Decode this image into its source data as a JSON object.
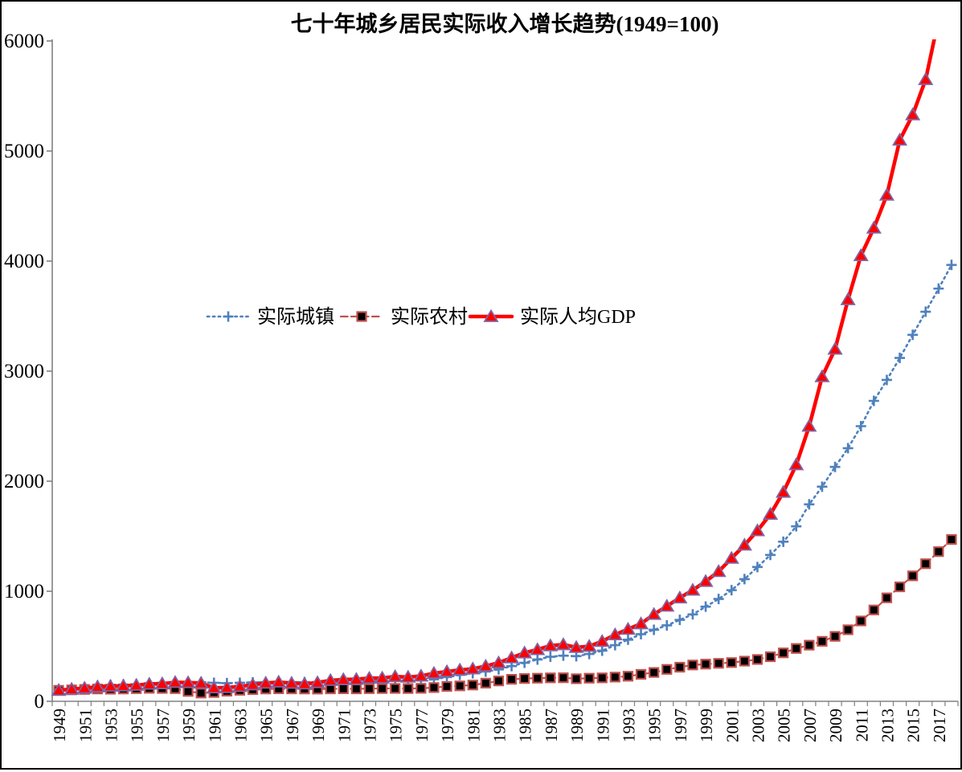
{
  "frame": {
    "background_color": "#ffffff",
    "border_color": "#000000",
    "axis_color": "#808080"
  },
  "chart_data": {
    "type": "line",
    "title": "七十年城乡居民实际收入增长趋势(1949=100)",
    "xlabel": "",
    "ylabel": "",
    "ylim": [
      0,
      6000
    ],
    "y_ticks": [
      0,
      1000,
      2000,
      3000,
      4000,
      5000,
      6000
    ],
    "grid": false,
    "legend_position": "inside-left-middle",
    "x_tick_labels": [
      "1949",
      "1951",
      "1953",
      "1955",
      "1957",
      "1959",
      "1961",
      "1963",
      "1965",
      "1967",
      "1969",
      "1971",
      "1973",
      "1975",
      "1977",
      "1979",
      "1981",
      "1983",
      "1985",
      "1987",
      "1989",
      "1991",
      "1993",
      "1995",
      "1997",
      "1999",
      "2001",
      "2003",
      "2005",
      "2007",
      "2009",
      "2011",
      "2013",
      "2015",
      "2017"
    ],
    "x": [
      1949,
      1950,
      1951,
      1952,
      1953,
      1954,
      1955,
      1956,
      1957,
      1958,
      1959,
      1960,
      1961,
      1962,
      1963,
      1964,
      1965,
      1966,
      1967,
      1968,
      1969,
      1970,
      1971,
      1972,
      1973,
      1974,
      1975,
      1976,
      1977,
      1978,
      1979,
      1980,
      1981,
      1982,
      1983,
      1984,
      1985,
      1986,
      1987,
      1988,
      1989,
      1990,
      1991,
      1992,
      1993,
      1994,
      1995,
      1996,
      1997,
      1998,
      1999,
      2000,
      2001,
      2002,
      2003,
      2004,
      2005,
      2006,
      2007,
      2008,
      2009,
      2010,
      2011,
      2012,
      2013,
      2014,
      2015,
      2016,
      2017,
      2018
    ],
    "series": [
      {
        "name": "实际城镇",
        "line_color": "#4F81BD",
        "line_style": "dotted",
        "marker": "plus",
        "marker_color": "#4F81BD",
        "values": [
          100,
          115,
          125,
          140,
          148,
          152,
          155,
          165,
          168,
          170,
          172,
          174,
          168,
          165,
          168,
          172,
          175,
          176,
          175,
          174,
          175,
          177,
          179,
          182,
          185,
          186,
          188,
          187,
          190,
          200,
          220,
          240,
          255,
          270,
          290,
          320,
          350,
          380,
          405,
          415,
          410,
          430,
          460,
          510,
          560,
          610,
          650,
          690,
          740,
          790,
          860,
          930,
          1010,
          1110,
          1220,
          1330,
          1450,
          1590,
          1790,
          1950,
          2130,
          2300,
          2500,
          2730,
          2920,
          3120,
          3330,
          3540,
          3750,
          3965
        ]
      },
      {
        "name": "实际农村",
        "line_color": "#C0504D",
        "line_style": "dashed",
        "marker": "square",
        "marker_fill": "#000000",
        "marker_border": "#C0504D",
        "values": [
          100,
          104,
          108,
          112,
          110,
          112,
          115,
          118,
          117,
          115,
          90,
          75,
          80,
          92,
          100,
          106,
          112,
          114,
          113,
          112,
          111,
          113,
          114,
          113,
          115,
          116,
          117,
          116,
          118,
          125,
          135,
          140,
          148,
          165,
          185,
          200,
          207,
          210,
          213,
          214,
          205,
          210,
          213,
          220,
          228,
          245,
          262,
          290,
          310,
          330,
          338,
          345,
          352,
          365,
          380,
          405,
          440,
          480,
          510,
          545,
          590,
          650,
          730,
          830,
          940,
          1040,
          1140,
          1250,
          1360,
          1470
        ]
      },
      {
        "name": "实际人均GDP",
        "line_color": "#FF0000",
        "line_style": "solid",
        "marker": "triangle",
        "marker_fill": "#FF0000",
        "marker_border": "#8064A2",
        "values": [
          100,
          110,
          120,
          132,
          137,
          140,
          146,
          156,
          160,
          172,
          170,
          165,
          122,
          125,
          135,
          150,
          165,
          175,
          164,
          158,
          170,
          190,
          198,
          200,
          210,
          212,
          225,
          220,
          230,
          255,
          270,
          285,
          295,
          320,
          350,
          395,
          440,
          470,
          505,
          515,
          490,
          500,
          545,
          605,
          655,
          705,
          790,
          865,
          940,
          1010,
          1090,
          1180,
          1300,
          1420,
          1550,
          1700,
          1900,
          2150,
          2500,
          2950,
          3200,
          3650,
          4050,
          4300,
          4600,
          5100,
          5330,
          5650,
          6200,
          6600
        ]
      }
    ]
  }
}
